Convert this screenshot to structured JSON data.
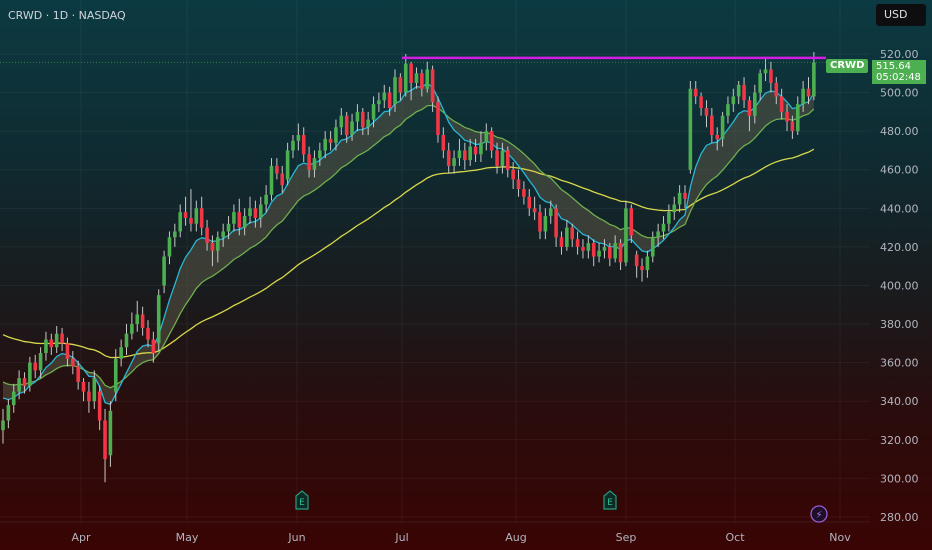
{
  "header": {
    "title": "CRWD · 1D · NASDAQ",
    "currency": "USD"
  },
  "last": {
    "symbol": "CRWD",
    "price": "515.64",
    "countdown": "05:02:48"
  },
  "colors": {
    "up": "#4caf50",
    "down": "#f23645",
    "ema_fast": "#29b6d6",
    "ema_slow": "#6fae4f",
    "ma_long": "#d8d84a",
    "resistance": "#d21ee0",
    "band_fill": "#5a5646"
  },
  "markers": [
    {
      "type": "earnings",
      "glyph": "E",
      "month": "Jun"
    },
    {
      "type": "earnings",
      "glyph": "E",
      "month": "Sep"
    },
    {
      "type": "event",
      "glyph": "⚡",
      "month": "Oct"
    }
  ],
  "chart_data": {
    "type": "candlestick",
    "title": "",
    "y_ticks": [
      "520.00",
      "500.00",
      "480.00",
      "460.00",
      "440.00",
      "420.00",
      "400.00",
      "380.00",
      "360.00",
      "340.00",
      "320.00",
      "300.00",
      "280.00"
    ],
    "ylim": [
      275,
      527
    ],
    "x_ticks": [
      "Apr",
      "May",
      "Jun",
      "Jul",
      "Aug",
      "Sep",
      "Oct",
      "Nov"
    ],
    "resistance_level": 518,
    "indicators": [
      "EMA fast (cyan)",
      "EMA slow (green)",
      "long MA (yellow)"
    ],
    "ohlc": [
      [
        325,
        336,
        318,
        330
      ],
      [
        330,
        341,
        326,
        338
      ],
      [
        338,
        349,
        334,
        345
      ],
      [
        345,
        356,
        341,
        352
      ],
      [
        352,
        355,
        344,
        348
      ],
      [
        348,
        363,
        345,
        360
      ],
      [
        360,
        364,
        352,
        356
      ],
      [
        356,
        368,
        352,
        365
      ],
      [
        365,
        376,
        361,
        372
      ],
      [
        372,
        375,
        364,
        368
      ],
      [
        368,
        379,
        365,
        375
      ],
      [
        375,
        378,
        366,
        370
      ],
      [
        370,
        373,
        358,
        362
      ],
      [
        362,
        366,
        354,
        358
      ],
      [
        358,
        361,
        346,
        350
      ],
      [
        350,
        352,
        340,
        345
      ],
      [
        345,
        350,
        334,
        340
      ],
      [
        340,
        356,
        336,
        352
      ],
      [
        345,
        348,
        325,
        330
      ],
      [
        330,
        336,
        298,
        310
      ],
      [
        312,
        340,
        306,
        335
      ],
      [
        345,
        367,
        340,
        362
      ],
      [
        362,
        372,
        358,
        368
      ],
      [
        368,
        380,
        364,
        375
      ],
      [
        375,
        386,
        372,
        380
      ],
      [
        380,
        392,
        376,
        385
      ],
      [
        385,
        389,
        374,
        378
      ],
      [
        378,
        382,
        368,
        372
      ],
      [
        372,
        376,
        360,
        365
      ],
      [
        370,
        398,
        366,
        395
      ],
      [
        400,
        418,
        396,
        415
      ],
      [
        415,
        428,
        411,
        425
      ],
      [
        425,
        432,
        420,
        428
      ],
      [
        428,
        442,
        425,
        438
      ],
      [
        438,
        446,
        431,
        435
      ],
      [
        435,
        450,
        428,
        432
      ],
      [
        432,
        444,
        428,
        440
      ],
      [
        440,
        446,
        426,
        430
      ],
      [
        430,
        434,
        418,
        422
      ],
      [
        422,
        426,
        410,
        418
      ],
      [
        418,
        428,
        412,
        425
      ],
      [
        425,
        432,
        420,
        428
      ],
      [
        428,
        436,
        424,
        432
      ],
      [
        432,
        442,
        428,
        438
      ],
      [
        438,
        445,
        426,
        430
      ],
      [
        430,
        440,
        426,
        436
      ],
      [
        436,
        446,
        432,
        440
      ],
      [
        440,
        444,
        430,
        435
      ],
      [
        435,
        446,
        430,
        442
      ],
      [
        442,
        452,
        438,
        447
      ],
      [
        447,
        466,
        444,
        462
      ],
      [
        462,
        466,
        455,
        458
      ],
      [
        458,
        462,
        448,
        452
      ],
      [
        455,
        474,
        452,
        470
      ],
      [
        470,
        478,
        466,
        475
      ],
      [
        475,
        484,
        470,
        478
      ],
      [
        478,
        482,
        464,
        468
      ],
      [
        468,
        472,
        456,
        460
      ],
      [
        460,
        470,
        456,
        466
      ],
      [
        466,
        474,
        462,
        470
      ],
      [
        470,
        480,
        466,
        476
      ],
      [
        476,
        480,
        470,
        474
      ],
      [
        474,
        486,
        470,
        482
      ],
      [
        482,
        492,
        478,
        488
      ],
      [
        488,
        490,
        474,
        478
      ],
      [
        478,
        489,
        475,
        485
      ],
      [
        485,
        494,
        480,
        490
      ],
      [
        490,
        492,
        478,
        482
      ],
      [
        482,
        490,
        478,
        486
      ],
      [
        486,
        498,
        482,
        494
      ],
      [
        494,
        500,
        490,
        496
      ],
      [
        496,
        504,
        492,
        500
      ],
      [
        500,
        503,
        488,
        492
      ],
      [
        494,
        512,
        490,
        508
      ],
      [
        508,
        510,
        496,
        500
      ],
      [
        500,
        520,
        498,
        515
      ],
      [
        515,
        516,
        496,
        505
      ],
      [
        505,
        513,
        502,
        510
      ],
      [
        510,
        512,
        498,
        502
      ],
      [
        502,
        516,
        500,
        512
      ],
      [
        512,
        514,
        490,
        495
      ],
      [
        495,
        498,
        474,
        478
      ],
      [
        478,
        482,
        466,
        470
      ],
      [
        470,
        474,
        458,
        462
      ],
      [
        462,
        470,
        458,
        466
      ],
      [
        466,
        476,
        462,
        470
      ],
      [
        470,
        474,
        460,
        465
      ],
      [
        465,
        476,
        462,
        472
      ],
      [
        472,
        476,
        464,
        468
      ],
      [
        468,
        480,
        464,
        474
      ],
      [
        474,
        484,
        470,
        480
      ],
      [
        480,
        482,
        466,
        470
      ],
      [
        470,
        474,
        458,
        462
      ],
      [
        462,
        474,
        458,
        470
      ],
      [
        470,
        472,
        456,
        460
      ],
      [
        460,
        464,
        450,
        455
      ],
      [
        455,
        460,
        446,
        450
      ],
      [
        450,
        454,
        442,
        446
      ],
      [
        446,
        450,
        436,
        440
      ],
      [
        440,
        446,
        434,
        438
      ],
      [
        438,
        442,
        424,
        428
      ],
      [
        428,
        440,
        424,
        436
      ],
      [
        436,
        444,
        432,
        440
      ],
      [
        440,
        442,
        420,
        425
      ],
      [
        425,
        428,
        416,
        420
      ],
      [
        420,
        434,
        418,
        430
      ],
      [
        430,
        432,
        420,
        424
      ],
      [
        424,
        428,
        416,
        420
      ],
      [
        420,
        424,
        414,
        418
      ],
      [
        418,
        426,
        414,
        422
      ],
      [
        422,
        424,
        410,
        415
      ],
      [
        415,
        422,
        412,
        418
      ],
      [
        418,
        424,
        414,
        420
      ],
      [
        420,
        422,
        410,
        414
      ],
      [
        414,
        426,
        412,
        422
      ],
      [
        422,
        424,
        408,
        412
      ],
      [
        412,
        444,
        410,
        440
      ],
      [
        440,
        442,
        422,
        426
      ],
      [
        416,
        418,
        404,
        410
      ],
      [
        410,
        414,
        402,
        408
      ],
      [
        408,
        418,
        404,
        415
      ],
      [
        415,
        428,
        412,
        425
      ],
      [
        425,
        432,
        420,
        428
      ],
      [
        428,
        436,
        424,
        432
      ],
      [
        432,
        442,
        428,
        438
      ],
      [
        438,
        446,
        434,
        442
      ],
      [
        442,
        452,
        438,
        448
      ],
      [
        448,
        452,
        440,
        445
      ],
      [
        460,
        506,
        458,
        502
      ],
      [
        502,
        506,
        494,
        498
      ],
      [
        498,
        500,
        488,
        492
      ],
      [
        492,
        496,
        482,
        488
      ],
      [
        488,
        492,
        474,
        478
      ],
      [
        478,
        482,
        470,
        476
      ],
      [
        476,
        490,
        472,
        488
      ],
      [
        488,
        498,
        484,
        494
      ],
      [
        494,
        502,
        490,
        498
      ],
      [
        498,
        506,
        494,
        504
      ],
      [
        504,
        508,
        492,
        496
      ],
      [
        496,
        498,
        480,
        488
      ],
      [
        488,
        504,
        484,
        500
      ],
      [
        500,
        512,
        496,
        510
      ],
      [
        510,
        518,
        506,
        512
      ],
      [
        512,
        516,
        500,
        505
      ],
      [
        505,
        508,
        494,
        498
      ],
      [
        498,
        502,
        486,
        490
      ],
      [
        490,
        494,
        480,
        485
      ],
      [
        485,
        488,
        476,
        480
      ],
      [
        480,
        498,
        478,
        494
      ],
      [
        494,
        506,
        490,
        502
      ],
      [
        502,
        508,
        494,
        498
      ],
      [
        498,
        521,
        496,
        515.64
      ]
    ]
  }
}
